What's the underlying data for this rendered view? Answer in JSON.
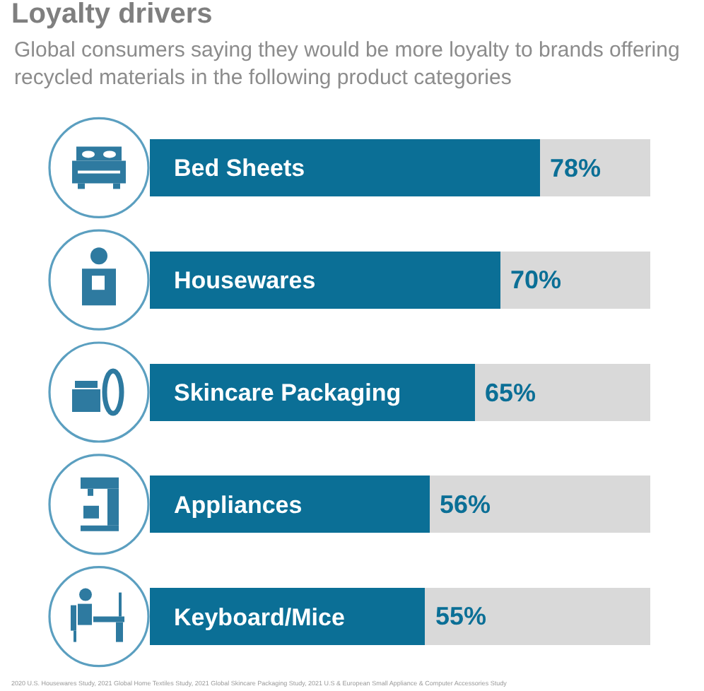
{
  "chart_data": {
    "type": "bar",
    "orientation": "horizontal",
    "stacked": true,
    "title": "Loyalty drivers",
    "subtitle": "Global consumers saying they would be more loyalty to brands offering recycled materials in the following product categories",
    "categories": [
      "Bed Sheets",
      "Housewares",
      "Skincare Packaging",
      "Appliances",
      "Keyboard/Mice"
    ],
    "series": [
      {
        "color": "#0b6f96",
        "values": [
          78,
          70,
          65,
          56,
          55
        ],
        "value_labels": [
          "78%",
          "70%",
          "65%",
          "56%",
          "55%"
        ]
      },
      {
        "color": "#d9d9d9",
        "values": [
          22,
          30,
          35,
          44,
          45
        ]
      }
    ],
    "tick_labels": "y",
    "annotations": [
      "2020 U.S. Housewares Study, 2021 Global Home Textiles Study, 2021 Global Skincare Packaging Study, 2021 U.S & European Small Appliance & Computer Accessories Study"
    ]
  }
}
